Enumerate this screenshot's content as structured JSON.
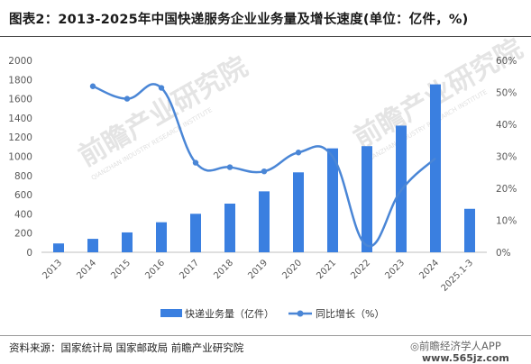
{
  "title": "图表2：2013-2025年中国快递服务企业业务量及增长速度(单位：亿件，%)",
  "source": "资料来源：国家统计局 国家邮政局 前瞻产业研究院",
  "brand": "◎前瞻经济学人APP",
  "site": "www.565jz.com",
  "watermark": {
    "text": "前瞻产业研究院",
    "subtext": "QIANZHAN INDUSTRY RESEARCH INSTITUTE"
  },
  "colors": {
    "bar": "#3a7fe0",
    "line": "#4a86d6",
    "axis_text": "#595959",
    "grid": "#d9d9d9"
  },
  "chart_data": {
    "type": "bar",
    "categories": [
      "2013",
      "2014",
      "2015",
      "2016",
      "2017",
      "2018",
      "2019",
      "2020",
      "2021",
      "2022",
      "2023",
      "2024",
      "2025.1-3"
    ],
    "series": [
      {
        "name": "快递业务量（亿件）",
        "type": "bar",
        "axis": "left",
        "values": [
          92,
          140,
          207,
          313,
          401,
          507,
          635,
          833,
          1083,
          1106,
          1320,
          1750,
          453
        ]
      },
      {
        "name": "同比增长（%）",
        "type": "line",
        "axis": "right",
        "values": [
          null,
          51.9,
          48.0,
          51.4,
          28.0,
          26.6,
          25.3,
          31.2,
          29.9,
          2.1,
          19.4,
          29.4,
          null
        ]
      }
    ],
    "y_left": {
      "min": 0,
      "max": 2000,
      "ticks": [
        0,
        200,
        400,
        600,
        800,
        1000,
        1200,
        1400,
        1600,
        1800,
        2000
      ]
    },
    "y_right": {
      "min": 0,
      "max": 60,
      "ticks": [
        "0%",
        "10%",
        "20%",
        "30%",
        "40%",
        "50%",
        "60%"
      ],
      "tick_values": [
        0,
        10,
        20,
        30,
        40,
        50,
        60
      ]
    },
    "legend": {
      "position": "bottom",
      "items": [
        "快递业务量（亿件）",
        "同比增长（%）"
      ]
    },
    "grid": false
  }
}
